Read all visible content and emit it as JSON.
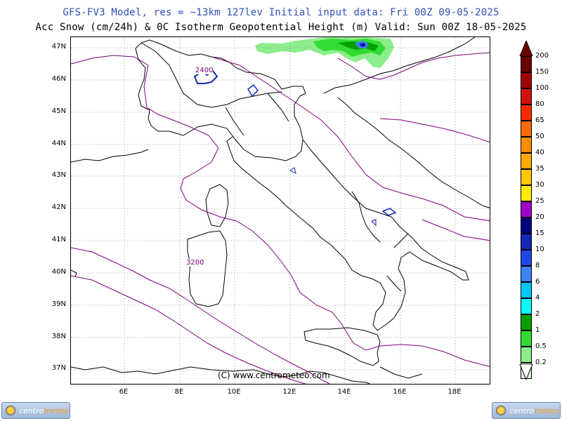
{
  "title_line1": "GFS-FV3 Model, res = ~13km 127lev    Initial input data: Fri 00Z 09-05-2025",
  "title_line2": "Acc Snow (cm/24h) & 0C Isotherm Geopotential Height (m)  Valid: Sun 00Z 18-05-2025",
  "lat_labels": [
    "47N",
    "46N",
    "45N",
    "44N",
    "43N",
    "42N",
    "41N",
    "40N",
    "39N",
    "38N",
    "37N"
  ],
  "lon_labels": [
    "6E",
    "8E",
    "10E",
    "12E",
    "14E",
    "16E",
    "18E"
  ],
  "contour_labels": [
    "2400",
    "3200"
  ],
  "legend": {
    "labels": [
      "200",
      "150",
      "100",
      "80",
      "65",
      "50",
      "40",
      "35",
      "30",
      "25",
      "20",
      "15",
      "10",
      "8",
      "6",
      "4",
      "2",
      "1",
      "0.5",
      "0.2"
    ],
    "colors": [
      "#6b0000",
      "#a00000",
      "#d01010",
      "#ff2a00",
      "#ff6a00",
      "#ff8c00",
      "#ffaa00",
      "#ffc800",
      "#ffee00",
      "#a000c8",
      "#000080",
      "#1428b4",
      "#1e46e6",
      "#3c82ff",
      "#00c8ff",
      "#00ffff",
      "#00a000",
      "#32dc32",
      "#8ced8c",
      "#d2fad2"
    ]
  },
  "copyright": "(C) www.centrometeo.com",
  "logo": {
    "part1": "centro",
    "part2": "meteo"
  },
  "colors": {
    "title1": "#2f4fb5",
    "isotherm": "#800080",
    "coast": "#000000",
    "snow_dark": "#1428b4"
  }
}
